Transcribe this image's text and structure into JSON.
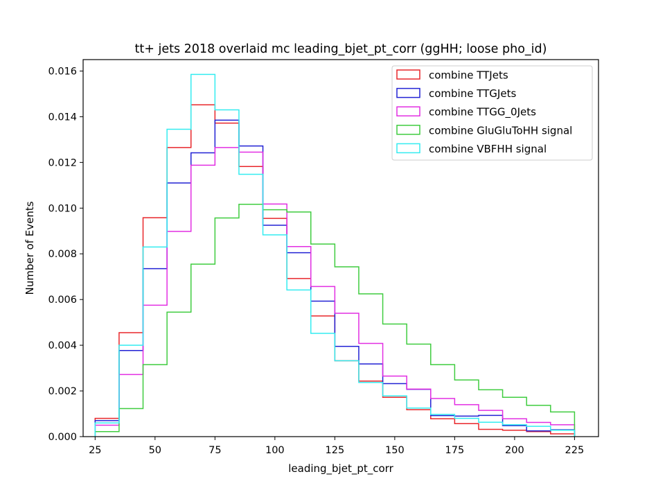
{
  "chart_data": {
    "type": "step-histogram",
    "title": "tt+ jets 2018 overlaid mc leading_bjet_pt_corr (ggHH; loose pho_id)",
    "xlabel": "leading_bjet_pt_corr",
    "ylabel": "Number of Events",
    "xlim": [
      20,
      235
    ],
    "ylim": [
      0,
      0.0165
    ],
    "x_ticks": [
      25,
      50,
      75,
      100,
      125,
      150,
      175,
      200,
      225
    ],
    "x_tick_labels": [
      "25",
      "50",
      "75",
      "100",
      "125",
      "150",
      "175",
      "200",
      "225"
    ],
    "y_ticks": [
      0,
      0.002,
      0.004,
      0.006,
      0.008,
      0.01,
      0.012,
      0.014,
      0.016
    ],
    "y_tick_labels": [
      "0.000",
      "0.002",
      "0.004",
      "0.006",
      "0.008",
      "0.010",
      "0.012",
      "0.014",
      "0.016"
    ],
    "bin_edges": [
      25,
      35,
      45,
      55,
      65,
      75,
      85,
      95,
      105,
      115,
      125,
      135,
      145,
      155,
      165,
      175,
      185,
      195,
      205,
      215,
      225
    ],
    "legend_position": "upper right",
    "series": [
      {
        "name": "combine TTJets",
        "color": "#e8262a",
        "values": [
          0.0008,
          0.00455,
          0.00958,
          0.01265,
          0.01452,
          0.01372,
          0.01182,
          0.00955,
          0.00692,
          0.00528,
          0.00332,
          0.00243,
          0.00172,
          0.00118,
          0.00078,
          0.00057,
          0.00032,
          0.00028,
          0.00022,
          0.00012
        ]
      },
      {
        "name": "combine TTGJets",
        "color": "#2121d4",
        "values": [
          0.0007,
          0.00377,
          0.00735,
          0.0111,
          0.01242,
          0.01385,
          0.01272,
          0.00925,
          0.00805,
          0.00593,
          0.00395,
          0.00318,
          0.00232,
          0.00207,
          0.00092,
          0.0009,
          0.00093,
          0.00048,
          0.00025,
          0.0003
        ]
      },
      {
        "name": "combine TTGG_0Jets",
        "color": "#e22ee2",
        "values": [
          0.0005,
          0.00272,
          0.00575,
          0.00898,
          0.01188,
          0.01265,
          0.01245,
          0.01018,
          0.00832,
          0.00657,
          0.0054,
          0.00408,
          0.00265,
          0.00208,
          0.00167,
          0.0014,
          0.00115,
          0.00078,
          0.00062,
          0.00052
        ]
      },
      {
        "name": "combine GluGluToHH signal",
        "color": "#3fcc3f",
        "values": [
          0.00022,
          0.00123,
          0.00315,
          0.00545,
          0.00755,
          0.00957,
          0.01017,
          0.00993,
          0.00983,
          0.00843,
          0.00743,
          0.00625,
          0.00493,
          0.00405,
          0.00315,
          0.00248,
          0.00205,
          0.00172,
          0.00137,
          0.00108
        ]
      },
      {
        "name": "combine VBFHH signal",
        "color": "#33ecf0",
        "values": [
          0.0006,
          0.004,
          0.0083,
          0.01345,
          0.01585,
          0.0143,
          0.01148,
          0.00883,
          0.00642,
          0.00452,
          0.00332,
          0.00237,
          0.00178,
          0.00125,
          0.00097,
          0.0008,
          0.00063,
          0.00052,
          0.00045,
          0.00028
        ]
      }
    ]
  }
}
